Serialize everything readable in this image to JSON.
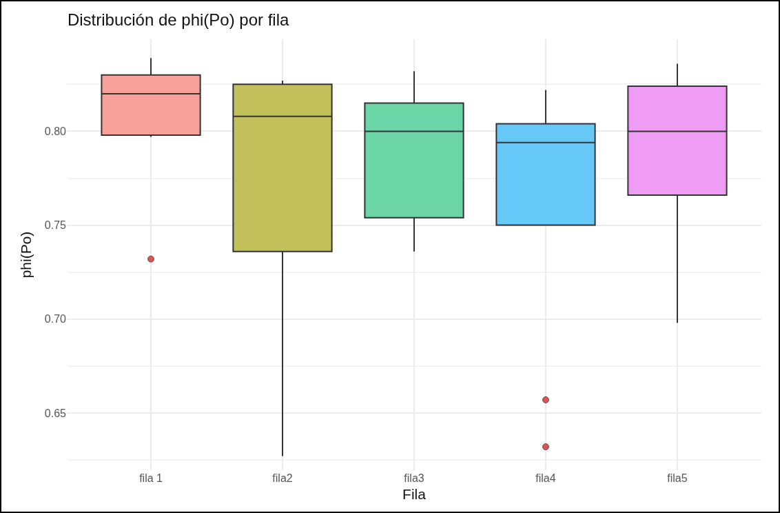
{
  "chart_data": {
    "type": "box",
    "title": "Distribución de phi(Po) por fila",
    "xlabel": "Fila",
    "ylabel": "phi(Po)",
    "categories": [
      "fila 1",
      "fila2",
      "fila3",
      "fila4",
      "fila5"
    ],
    "colors": [
      "#f9a19b",
      "#c1c05a",
      "#6bd5a8",
      "#66c8f6",
      "#ef9df4"
    ],
    "boxes": [
      {
        "low": 0.797,
        "q1": 0.798,
        "median": 0.82,
        "q3": 0.83,
        "high": 0.839,
        "outliers": [
          0.732
        ]
      },
      {
        "low": 0.627,
        "q1": 0.736,
        "median": 0.808,
        "q3": 0.825,
        "high": 0.827
      },
      {
        "low": 0.736,
        "q1": 0.754,
        "median": 0.8,
        "q3": 0.815,
        "high": 0.832
      },
      {
        "low": 0.75,
        "q1": 0.75,
        "median": 0.794,
        "q3": 0.804,
        "high": 0.822,
        "outliers": [
          0.657,
          0.632
        ]
      },
      {
        "low": 0.698,
        "q1": 0.766,
        "median": 0.8,
        "q3": 0.824,
        "high": 0.836
      }
    ],
    "ylim": [
      0.6195,
      0.849
    ],
    "yticks": [
      0.65,
      {
        "value": 0.7,
        "label": "0.70"
      },
      0.75,
      {
        "value": 0.8,
        "label": "0.80"
      }
    ],
    "grid": true
  }
}
